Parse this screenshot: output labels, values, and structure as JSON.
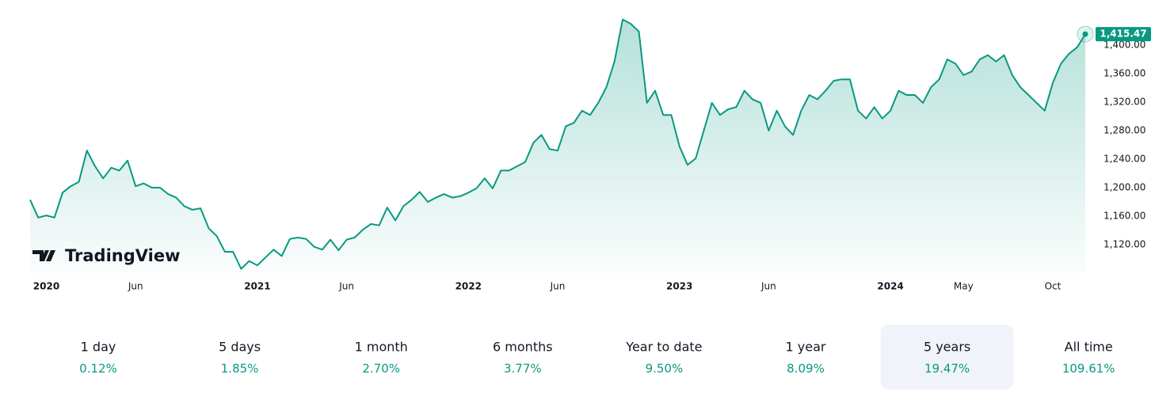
{
  "chart_data": {
    "type": "area",
    "categories": [
      null,
      null,
      "2020",
      null,
      null,
      null,
      null,
      null,
      null,
      null,
      null,
      null,
      null,
      "Jun",
      null,
      null,
      null,
      null,
      null,
      null,
      null,
      null,
      null,
      null,
      null,
      null,
      null,
      null,
      "2021",
      null,
      null,
      null,
      null,
      null,
      null,
      null,
      null,
      null,
      null,
      "Jun",
      null,
      null,
      null,
      null,
      null,
      null,
      null,
      null,
      null,
      null,
      null,
      null,
      null,
      null,
      "2022",
      null,
      null,
      null,
      null,
      null,
      null,
      null,
      null,
      null,
      null,
      "Jun",
      null,
      null,
      null,
      null,
      null,
      null,
      null,
      null,
      null,
      null,
      null,
      null,
      null,
      null,
      "2023",
      null,
      null,
      null,
      null,
      null,
      null,
      null,
      null,
      null,
      null,
      "Jun",
      null,
      null,
      null,
      null,
      null,
      null,
      null,
      null,
      null,
      null,
      null,
      null,
      null,
      null,
      "2024",
      null,
      null,
      null,
      null,
      null,
      null,
      null,
      null,
      "May",
      null,
      null,
      null,
      null,
      null,
      null,
      null,
      null,
      null,
      null,
      "Oct",
      null,
      null,
      null,
      null
    ],
    "values": [
      1183,
      1158,
      1161,
      1158,
      1193,
      1202,
      1208,
      1252,
      1230,
      1213,
      1228,
      1224,
      1238,
      1202,
      1206,
      1200,
      1200,
      1191,
      1186,
      1174,
      1169,
      1171,
      1143,
      1132,
      1110,
      1110,
      1086,
      1097,
      1091,
      1102,
      1113,
      1104,
      1128,
      1130,
      1128,
      1117,
      1113,
      1127,
      1112,
      1127,
      1130,
      1141,
      1149,
      1147,
      1172,
      1154,
      1174,
      1183,
      1194,
      1180,
      1186,
      1191,
      1186,
      1188,
      1193,
      1199,
      1213,
      1199,
      1224,
      1224,
      1230,
      1236,
      1263,
      1274,
      1254,
      1252,
      1286,
      1291,
      1308,
      1302,
      1319,
      1341,
      1377,
      1436,
      1430,
      1419,
      1319,
      1336,
      1302,
      1302,
      1258,
      1232,
      1241,
      1280,
      1319,
      1302,
      1310,
      1313,
      1336,
      1324,
      1319,
      1280,
      1308,
      1286,
      1274,
      1308,
      1330,
      1324,
      1336,
      1350,
      1352,
      1352,
      1308,
      1297,
      1313,
      1297,
      1308,
      1336,
      1330,
      1330,
      1319,
      1341,
      1352,
      1380,
      1374,
      1358,
      1363,
      1380,
      1386,
      1377,
      1386,
      1358,
      1341,
      1330,
      1319,
      1308,
      1347,
      1374,
      1388,
      1397,
      1415.47
    ],
    "last_label": "1,415.47",
    "color": "#089981",
    "ylim": [
      1080,
      1460
    ],
    "yticks": [
      {
        "value": 1120,
        "label": "1,120.00"
      },
      {
        "value": 1160,
        "label": "1,160.00"
      },
      {
        "value": 1200,
        "label": "1,200.00"
      },
      {
        "value": 1240,
        "label": "1,240.00"
      },
      {
        "value": 1280,
        "label": "1,280.00"
      },
      {
        "value": 1320,
        "label": "1,320.00"
      },
      {
        "value": 1360,
        "label": "1,360.00"
      },
      {
        "value": 1400,
        "label": "1,400.00"
      }
    ],
    "grid": false
  },
  "watermark": "TradingView",
  "periods": [
    {
      "label": "1 day",
      "change": "0.12%"
    },
    {
      "label": "5 days",
      "change": "1.85%"
    },
    {
      "label": "1 month",
      "change": "2.70%"
    },
    {
      "label": "6 months",
      "change": "3.77%"
    },
    {
      "label": "Year to date",
      "change": "9.50%"
    },
    {
      "label": "1 year",
      "change": "8.09%"
    },
    {
      "label": "5 years",
      "change": "19.47%"
    },
    {
      "label": "All time",
      "change": "109.61%"
    }
  ],
  "selected": 6
}
